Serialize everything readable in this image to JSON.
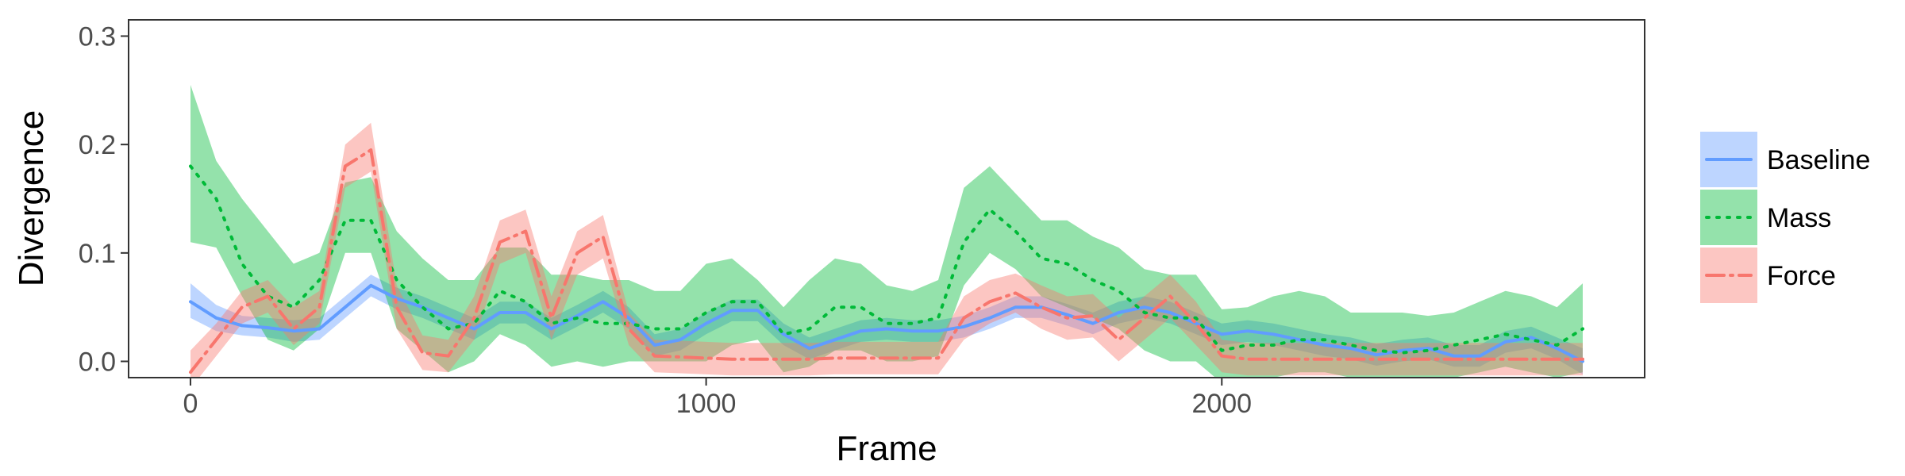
{
  "chart_data": {
    "type": "line",
    "xlabel": "Frame",
    "ylabel": "Divergence",
    "xlim": [
      -120,
      2820
    ],
    "ylim": [
      -0.015,
      0.315
    ],
    "xticks": [
      0,
      1000,
      2000
    ],
    "xtick_labels": [
      "0",
      "1000",
      "2000"
    ],
    "yticks": [
      0.0,
      0.1,
      0.2,
      0.3
    ],
    "ytick_labels": [
      "0.0",
      "0.1",
      "0.2",
      "0.3"
    ],
    "grid": false,
    "legend": "right",
    "series": [
      {
        "name": "Baseline",
        "color": "#619CFF",
        "line_style": "solid",
        "x": [
          0,
          50,
          100,
          150,
          200,
          250,
          300,
          350,
          400,
          450,
          500,
          550,
          600,
          650,
          700,
          750,
          800,
          850,
          900,
          950,
          1000,
          1050,
          1100,
          1150,
          1200,
          1250,
          1300,
          1350,
          1400,
          1450,
          1500,
          1550,
          1600,
          1650,
          1700,
          1750,
          1800,
          1850,
          1900,
          1950,
          2000,
          2050,
          2100,
          2150,
          2200,
          2250,
          2300,
          2350,
          2400,
          2450,
          2500,
          2550,
          2600,
          2650,
          2700
        ],
        "y": [
          0.055,
          0.04,
          0.033,
          0.031,
          0.028,
          0.03,
          0.05,
          0.07,
          0.058,
          0.05,
          0.04,
          0.03,
          0.045,
          0.045,
          0.03,
          0.042,
          0.055,
          0.04,
          0.015,
          0.02,
          0.035,
          0.047,
          0.047,
          0.025,
          0.012,
          0.02,
          0.028,
          0.03,
          0.028,
          0.028,
          0.032,
          0.04,
          0.05,
          0.05,
          0.043,
          0.035,
          0.045,
          0.05,
          0.045,
          0.035,
          0.025,
          0.028,
          0.025,
          0.02,
          0.015,
          0.012,
          0.006,
          0.01,
          0.012,
          0.005,
          0.005,
          0.018,
          0.022,
          0.012,
          0.0
        ],
        "lower": [
          0.04,
          0.028,
          0.024,
          0.022,
          0.018,
          0.02,
          0.04,
          0.06,
          0.048,
          0.04,
          0.03,
          0.02,
          0.035,
          0.035,
          0.02,
          0.032,
          0.045,
          0.03,
          0.005,
          0.01,
          0.025,
          0.037,
          0.037,
          0.015,
          0.002,
          0.01,
          0.018,
          0.02,
          0.018,
          0.018,
          0.022,
          0.03,
          0.04,
          0.04,
          0.033,
          0.025,
          0.035,
          0.04,
          0.035,
          0.025,
          0.015,
          0.018,
          0.015,
          0.01,
          0.005,
          0.002,
          -0.004,
          0.0,
          0.002,
          -0.005,
          -0.005,
          0.008,
          0.012,
          0.002,
          -0.012
        ],
        "upper": [
          0.072,
          0.052,
          0.042,
          0.04,
          0.038,
          0.04,
          0.06,
          0.08,
          0.068,
          0.06,
          0.05,
          0.04,
          0.055,
          0.055,
          0.04,
          0.052,
          0.065,
          0.05,
          0.025,
          0.03,
          0.045,
          0.057,
          0.057,
          0.035,
          0.022,
          0.03,
          0.038,
          0.04,
          0.038,
          0.038,
          0.042,
          0.05,
          0.06,
          0.06,
          0.053,
          0.045,
          0.055,
          0.06,
          0.055,
          0.045,
          0.035,
          0.038,
          0.035,
          0.03,
          0.025,
          0.022,
          0.016,
          0.02,
          0.022,
          0.015,
          0.015,
          0.028,
          0.032,
          0.022,
          0.012
        ]
      },
      {
        "name": "Mass",
        "color": "#00BA38",
        "line_style": "dotted",
        "x": [
          0,
          50,
          100,
          150,
          200,
          250,
          300,
          350,
          400,
          450,
          500,
          550,
          600,
          650,
          700,
          750,
          800,
          850,
          900,
          950,
          1000,
          1050,
          1100,
          1150,
          1200,
          1250,
          1300,
          1350,
          1400,
          1450,
          1500,
          1550,
          1600,
          1650,
          1700,
          1750,
          1800,
          1850,
          1900,
          1950,
          2000,
          2050,
          2100,
          2150,
          2200,
          2250,
          2300,
          2350,
          2400,
          2450,
          2500,
          2550,
          2600,
          2650,
          2700
        ],
        "y": [
          0.18,
          0.15,
          0.09,
          0.06,
          0.05,
          0.075,
          0.13,
          0.13,
          0.075,
          0.05,
          0.03,
          0.035,
          0.065,
          0.055,
          0.035,
          0.04,
          0.035,
          0.035,
          0.03,
          0.03,
          0.045,
          0.055,
          0.055,
          0.025,
          0.03,
          0.05,
          0.05,
          0.035,
          0.035,
          0.04,
          0.11,
          0.14,
          0.12,
          0.095,
          0.09,
          0.075,
          0.065,
          0.045,
          0.04,
          0.04,
          0.01,
          0.015,
          0.015,
          0.02,
          0.02,
          0.015,
          0.01,
          0.008,
          0.01,
          0.015,
          0.02,
          0.025,
          0.02,
          0.015,
          0.03
        ],
        "lower": [
          0.11,
          0.105,
          0.06,
          0.02,
          0.01,
          0.03,
          0.1,
          0.1,
          0.03,
          0.01,
          -0.01,
          0.0,
          0.025,
          0.015,
          -0.005,
          0.0,
          -0.005,
          0.0,
          0.0,
          0.0,
          0.0,
          0.015,
          0.02,
          -0.01,
          -0.005,
          0.01,
          0.01,
          0.0,
          0.0,
          0.005,
          0.07,
          0.1,
          0.085,
          0.06,
          0.05,
          0.04,
          0.03,
          0.01,
          0.0,
          0.0,
          -0.02,
          -0.015,
          -0.015,
          -0.01,
          -0.01,
          -0.015,
          -0.02,
          -0.02,
          -0.02,
          -0.015,
          -0.01,
          -0.005,
          -0.01,
          -0.015,
          -0.01
        ],
        "upper": [
          0.255,
          0.185,
          0.15,
          0.12,
          0.09,
          0.1,
          0.165,
          0.17,
          0.12,
          0.095,
          0.075,
          0.075,
          0.105,
          0.105,
          0.08,
          0.08,
          0.075,
          0.075,
          0.065,
          0.065,
          0.09,
          0.095,
          0.075,
          0.05,
          0.075,
          0.095,
          0.09,
          0.07,
          0.065,
          0.075,
          0.16,
          0.18,
          0.155,
          0.13,
          0.13,
          0.115,
          0.105,
          0.085,
          0.08,
          0.08,
          0.048,
          0.05,
          0.06,
          0.065,
          0.06,
          0.045,
          0.045,
          0.045,
          0.042,
          0.045,
          0.055,
          0.065,
          0.06,
          0.05,
          0.072
        ]
      },
      {
        "name": "Force",
        "color": "#F8766D",
        "line_style": "dashdot",
        "x": [
          0,
          50,
          100,
          150,
          200,
          250,
          300,
          350,
          400,
          450,
          500,
          550,
          600,
          650,
          700,
          750,
          800,
          850,
          900,
          950,
          1000,
          1050,
          1100,
          1150,
          1200,
          1250,
          1300,
          1350,
          1400,
          1450,
          1500,
          1550,
          1600,
          1650,
          1700,
          1750,
          1800,
          1850,
          1900,
          1950,
          2000,
          2050,
          2100,
          2150,
          2200,
          2250,
          2300,
          2350,
          2400,
          2450,
          2500,
          2550,
          2600,
          2650,
          2700
        ],
        "y": [
          -0.01,
          0.02,
          0.05,
          0.06,
          0.03,
          0.05,
          0.18,
          0.195,
          0.05,
          0.008,
          0.005,
          0.04,
          0.11,
          0.12,
          0.04,
          0.1,
          0.115,
          0.03,
          0.005,
          0.004,
          0.003,
          0.002,
          0.002,
          0.002,
          0.002,
          0.003,
          0.003,
          0.003,
          0.003,
          0.003,
          0.04,
          0.055,
          0.063,
          0.05,
          0.04,
          0.042,
          0.02,
          0.04,
          0.06,
          0.035,
          0.005,
          0.002,
          0.002,
          0.002,
          0.002,
          0.002,
          0.002,
          0.002,
          0.002,
          0.002,
          0.002,
          0.002,
          0.002,
          0.002,
          0.002
        ],
        "lower": [
          -0.025,
          0.005,
          0.035,
          0.045,
          0.015,
          0.035,
          0.16,
          0.175,
          0.03,
          -0.008,
          -0.01,
          0.02,
          0.09,
          0.1,
          0.02,
          0.08,
          0.095,
          0.015,
          -0.01,
          -0.011,
          -0.012,
          -0.013,
          -0.013,
          -0.013,
          -0.013,
          -0.012,
          -0.012,
          -0.012,
          -0.012,
          -0.012,
          0.02,
          0.035,
          0.045,
          0.03,
          0.02,
          0.022,
          0.0,
          0.02,
          0.04,
          0.015,
          -0.01,
          -0.013,
          -0.013,
          -0.013,
          -0.013,
          -0.013,
          -0.013,
          -0.013,
          -0.013,
          -0.013,
          -0.013,
          -0.013,
          -0.013,
          -0.013,
          -0.013
        ],
        "upper": [
          0.01,
          0.035,
          0.065,
          0.075,
          0.05,
          0.065,
          0.2,
          0.22,
          0.07,
          0.024,
          0.02,
          0.06,
          0.13,
          0.14,
          0.06,
          0.12,
          0.135,
          0.045,
          0.02,
          0.019,
          0.018,
          0.017,
          0.017,
          0.017,
          0.017,
          0.018,
          0.018,
          0.018,
          0.018,
          0.018,
          0.06,
          0.075,
          0.081,
          0.07,
          0.06,
          0.062,
          0.04,
          0.06,
          0.08,
          0.055,
          0.02,
          0.017,
          0.017,
          0.017,
          0.017,
          0.017,
          0.017,
          0.017,
          0.017,
          0.017,
          0.017,
          0.017,
          0.017,
          0.017,
          0.017
        ]
      }
    ]
  }
}
